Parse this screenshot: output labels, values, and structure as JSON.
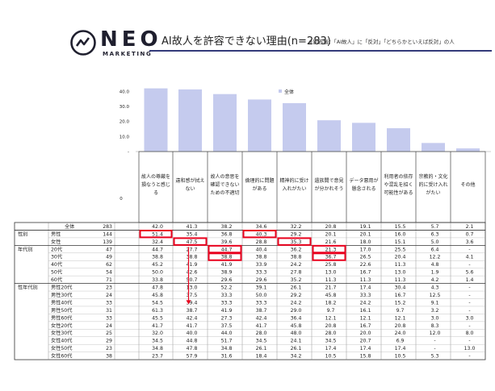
{
  "brand": {
    "name": "NEO",
    "sub": "MARKETING"
  },
  "header": {
    "title": "AI故人を許容できない理由(n=283)",
    "note": "※回答者：「AI故人」に「反対」「どちらかといえば反対」の人"
  },
  "colors": {
    "bar": "#c5cbee",
    "highlight": "#e8001c",
    "arrow": "#e8001c"
  },
  "chart_data": {
    "type": "bar",
    "legend": "全体",
    "legend_position": "top-center",
    "ylim": [
      0,
      45
    ],
    "yticks": [
      "40.0",
      "30.0",
      "20.0",
      "10.0",
      "-"
    ],
    "zero_label": "0",
    "categories": [
      "故人の尊厳を損なうと感じる",
      "違和感が拭えない",
      "故人の意思を確認できないための不適切",
      "倫理的に問題がある",
      "精神的に受け入れがたい",
      "遺族間で意見が分かれそう",
      "データ悪用が懸念される",
      "利用者の依存や混乱を招く可能性がある",
      "宗教的・文化的に受け入れがたい",
      "その他"
    ],
    "values": [
      42.0,
      41.3,
      38.2,
      34.6,
      32.2,
      20.8,
      19.1,
      15.5,
      5.7,
      2.1
    ],
    "table": {
      "groups": [
        "性別",
        "年代別",
        "性年代別"
      ],
      "rows": [
        {
          "group": "",
          "label": "全体",
          "n": "283",
          "values": [
            "42.0",
            "41.3",
            "38.2",
            "34.6",
            "32.2",
            "20.8",
            "19.1",
            "15.5",
            "5.7",
            "2.1"
          ]
        },
        {
          "group": "性別",
          "label": "男性",
          "n": "144",
          "values": [
            "51.4",
            "35.4",
            "36.8",
            "40.3",
            "29.2",
            "20.1",
            "20.1",
            "16.0",
            "6.3",
            "0.7"
          ]
        },
        {
          "group": "",
          "label": "女性",
          "n": "139",
          "values": [
            "32.4",
            "47.5",
            "39.6",
            "28.8",
            "35.3",
            "21.6",
            "18.0",
            "15.1",
            "5.0",
            "3.6"
          ]
        },
        {
          "group": "年代別",
          "label": "20代",
          "n": "47",
          "values": [
            "44.7",
            "27.7",
            "44.7",
            "40.4",
            "36.2",
            "21.3",
            "17.0",
            "25.5",
            "6.4",
            "-"
          ]
        },
        {
          "group": "",
          "label": "30代",
          "n": "49",
          "values": [
            "38.8",
            "38.8",
            "38.8",
            "38.8",
            "38.8",
            "36.7",
            "26.5",
            "20.4",
            "12.2",
            "4.1"
          ]
        },
        {
          "group": "",
          "label": "40代",
          "n": "62",
          "values": [
            "45.2",
            "41.9",
            "41.9",
            "33.9",
            "24.2",
            "25.8",
            "22.6",
            "11.3",
            "4.8",
            "-"
          ]
        },
        {
          "group": "",
          "label": "50代",
          "n": "54",
          "values": [
            "50.0",
            "42.6",
            "38.9",
            "33.3",
            "27.8",
            "13.0",
            "16.7",
            "13.0",
            "1.9",
            "5.6"
          ]
        },
        {
          "group": "",
          "label": "60代",
          "n": "71",
          "values": [
            "33.8",
            "50.7",
            "29.6",
            "29.6",
            "35.2",
            "11.3",
            "11.3",
            "11.3",
            "4.2",
            "1.4"
          ]
        },
        {
          "group": "性年代別",
          "label": "男性20代",
          "n": "23",
          "values": [
            "47.8",
            "13.0",
            "52.2",
            "39.1",
            "26.1",
            "21.7",
            "17.4",
            "30.4",
            "4.3",
            "-"
          ]
        },
        {
          "group": "",
          "label": "男性30代",
          "n": "24",
          "values": [
            "45.8",
            "37.5",
            "33.3",
            "50.0",
            "29.2",
            "45.8",
            "33.3",
            "16.7",
            "12.5",
            "-"
          ]
        },
        {
          "group": "",
          "label": "男性40代",
          "n": "33",
          "values": [
            "54.5",
            "39.4",
            "33.3",
            "33.3",
            "24.2",
            "18.2",
            "24.2",
            "15.2",
            "9.1",
            "-"
          ]
        },
        {
          "group": "",
          "label": "男性50代",
          "n": "31",
          "values": [
            "61.3",
            "38.7",
            "41.9",
            "38.7",
            "29.0",
            "9.7",
            "16.1",
            "9.7",
            "3.2",
            "-"
          ]
        },
        {
          "group": "",
          "label": "男性60代",
          "n": "33",
          "values": [
            "45.5",
            "42.4",
            "27.3",
            "42.4",
            "36.4",
            "12.1",
            "12.1",
            "12.1",
            "3.0",
            "3.0"
          ]
        },
        {
          "group": "",
          "label": "女性20代",
          "n": "24",
          "values": [
            "41.7",
            "41.7",
            "37.5",
            "41.7",
            "45.8",
            "20.8",
            "16.7",
            "20.8",
            "8.3",
            "-"
          ]
        },
        {
          "group": "",
          "label": "女性30代",
          "n": "25",
          "values": [
            "32.0",
            "40.0",
            "44.0",
            "28.0",
            "48.0",
            "28.0",
            "20.0",
            "24.0",
            "12.0",
            "8.0"
          ]
        },
        {
          "group": "",
          "label": "女性40代",
          "n": "29",
          "values": [
            "34.5",
            "44.8",
            "51.7",
            "34.5",
            "24.1",
            "34.5",
            "20.7",
            "6.9",
            "-",
            "-"
          ]
        },
        {
          "group": "",
          "label": "女性50代",
          "n": "23",
          "values": [
            "34.8",
            "47.8",
            "34.8",
            "26.1",
            "26.1",
            "17.4",
            "17.4",
            "17.4",
            "-",
            "13.0"
          ]
        },
        {
          "group": "",
          "label": "女性60代",
          "n": "38",
          "values": [
            "23.7",
            "57.9",
            "31.6",
            "18.4",
            "34.2",
            "10.5",
            "15.8",
            "10.5",
            "5.3",
            "-"
          ]
        }
      ],
      "highlights": [
        {
          "row": 1,
          "col": 0
        },
        {
          "row": 2,
          "col": 1
        },
        {
          "row": 1,
          "col": 3
        },
        {
          "row": 2,
          "col": 4
        },
        {
          "row": 3,
          "col": 2
        },
        {
          "row": 4,
          "col": 2
        },
        {
          "row": 3,
          "col": 5
        },
        {
          "row": 4,
          "col": 5
        }
      ]
    }
  }
}
